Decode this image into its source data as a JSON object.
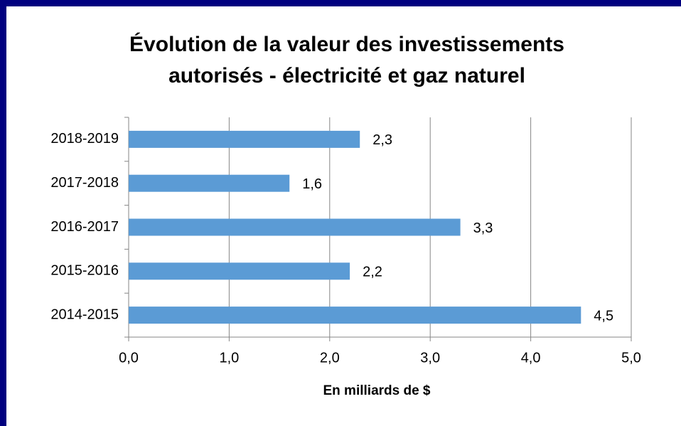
{
  "chart_data": {
    "type": "hbar",
    "title": [
      "Évolution de la valeur des investissements",
      "autorisés - électricité et gaz naturel"
    ],
    "x_label": "En milliards de $",
    "categories": [
      "2018-2019",
      "2017-2018",
      "2016-2017",
      "2015-2016",
      "2014-2015"
    ],
    "values": [
      2.3,
      1.6,
      3.3,
      2.2,
      4.5
    ],
    "value_labels": [
      "2,3",
      "1,6",
      "3,3",
      "2,2",
      "4,5"
    ],
    "color": "#5b9bd5",
    "xlim": [
      0,
      5
    ],
    "xticks": [
      {
        "value": 0,
        "label": "0,0"
      },
      {
        "value": 1,
        "label": "1,0"
      },
      {
        "value": 2,
        "label": "2,0"
      },
      {
        "value": 3,
        "label": "3,0"
      },
      {
        "value": 4,
        "label": "4,0"
      },
      {
        "value": 5,
        "label": "5,0"
      }
    ],
    "grid": true
  }
}
